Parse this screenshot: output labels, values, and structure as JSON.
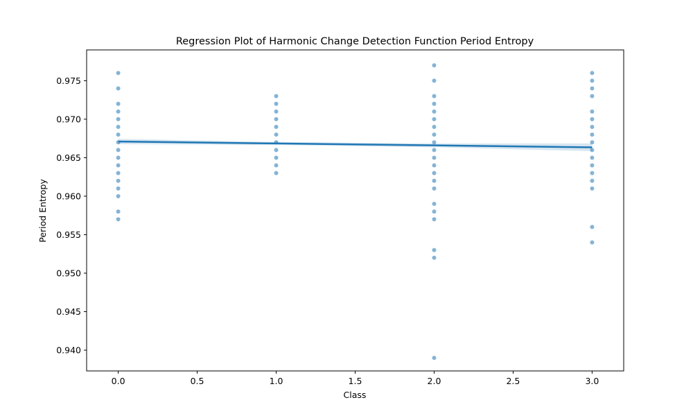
{
  "chart_data": {
    "type": "scatter",
    "title": "Regression Plot of Harmonic Change Detection Function Period Entropy",
    "xlabel": "Class",
    "ylabel": "Period Entropy",
    "xlim": [
      -0.2,
      3.2
    ],
    "ylim": [
      0.9373,
      0.979
    ],
    "x_ticks": [
      0.0,
      0.5,
      1.0,
      1.5,
      2.0,
      2.5,
      3.0
    ],
    "x_tick_labels": [
      "0.0",
      "0.5",
      "1.0",
      "1.5",
      "2.0",
      "2.5",
      "3.0"
    ],
    "y_ticks": [
      0.94,
      0.945,
      0.95,
      0.955,
      0.96,
      0.965,
      0.97,
      0.975
    ],
    "y_tick_labels": [
      "0.940",
      "0.945",
      "0.950",
      "0.955",
      "0.960",
      "0.965",
      "0.970",
      "0.975"
    ],
    "grid": false,
    "colors": {
      "points": "#1f77b4",
      "line": "#1f77b4",
      "band": "#1f77b4",
      "axes": "#000000"
    },
    "points": [
      {
        "x": 0,
        "y": [
          0.976,
          0.974,
          0.972,
          0.971,
          0.97,
          0.969,
          0.968,
          0.967,
          0.966,
          0.965,
          0.964,
          0.963,
          0.962,
          0.961,
          0.96,
          0.958,
          0.957
        ]
      },
      {
        "x": 1,
        "y": [
          0.973,
          0.972,
          0.971,
          0.97,
          0.969,
          0.968,
          0.967,
          0.966,
          0.965,
          0.964,
          0.963
        ]
      },
      {
        "x": 2,
        "y": [
          0.977,
          0.975,
          0.973,
          0.972,
          0.971,
          0.97,
          0.969,
          0.968,
          0.967,
          0.966,
          0.965,
          0.964,
          0.963,
          0.962,
          0.961,
          0.959,
          0.958,
          0.957,
          0.953,
          0.952,
          0.939
        ]
      },
      {
        "x": 3,
        "y": [
          0.976,
          0.975,
          0.974,
          0.973,
          0.971,
          0.97,
          0.969,
          0.968,
          0.967,
          0.966,
          0.965,
          0.964,
          0.963,
          0.962,
          0.961,
          0.956,
          0.954
        ]
      }
    ],
    "regression": {
      "x": [
        0,
        1,
        2,
        3
      ],
      "y": [
        0.9671,
        0.96685,
        0.9666,
        0.96635
      ],
      "ci_lower": [
        0.96675,
        0.96665,
        0.96635,
        0.96585
      ],
      "ci_upper": [
        0.96745,
        0.96705,
        0.96685,
        0.96685
      ]
    }
  }
}
